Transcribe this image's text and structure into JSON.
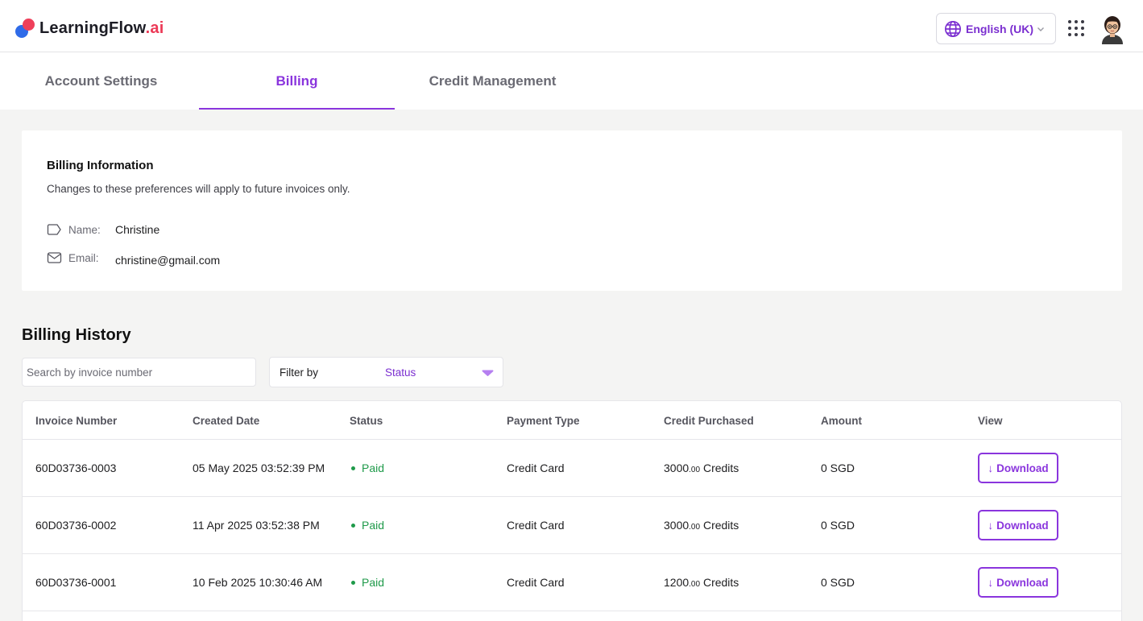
{
  "app": {
    "logo_text": "LearningFlow",
    "logo_accent": ".ai",
    "logo_icon": "learningflow-logo-icon"
  },
  "header": {
    "language_label": "English (UK)",
    "language_icon": "globe-icon",
    "apps_icon": "grid-apps-icon",
    "avatar_icon": "user-avatar"
  },
  "tabs": [
    {
      "label": "Account Settings",
      "active": false
    },
    {
      "label": "Billing",
      "active": true
    },
    {
      "label": "Credit Management",
      "active": false
    }
  ],
  "billing_info": {
    "title": "Billing Information",
    "subtitle": "Changes to these preferences will apply to future invoices only.",
    "name_label": "Name:",
    "name_value": "Christine",
    "email_label": "Email:",
    "email_value": "christine@gmail.com"
  },
  "billing_history": {
    "title": "Billing History",
    "search_placeholder": "Search by invoice number",
    "filter_label": "Filter by",
    "filter_value": "Status",
    "columns": [
      "Invoice Number",
      "Created Date",
      "Status",
      "Payment Type",
      "Credit Purchased",
      "Amount",
      "View"
    ],
    "download_label": "Download",
    "rows": [
      {
        "invoice": "60D03736-0003",
        "date": "05 May 2025 03:52:39 PM",
        "status": "Paid",
        "payment": "Credit Card",
        "credit_int": "3000",
        "credit_dec": ".00",
        "credit_unit": " Credits",
        "amount": "0 SGD"
      },
      {
        "invoice": "60D03736-0002",
        "date": "11 Apr 2025 03:52:38 PM",
        "status": "Paid",
        "payment": "Credit Card",
        "credit_int": "3000",
        "credit_dec": ".00",
        "credit_unit": " Credits",
        "amount": "0 SGD"
      },
      {
        "invoice": "60D03736-0001",
        "date": "10 Feb 2025 10:30:46 AM",
        "status": "Paid",
        "payment": "Credit Card",
        "credit_int": "1200",
        "credit_dec": ".00",
        "credit_unit": " Credits",
        "amount": "0 SGD"
      }
    ]
  },
  "colors": {
    "accent": "#8a35dd",
    "paid": "#1f9a4a",
    "logo_red": "#ef3f5a",
    "logo_blue": "#2f6be8"
  }
}
